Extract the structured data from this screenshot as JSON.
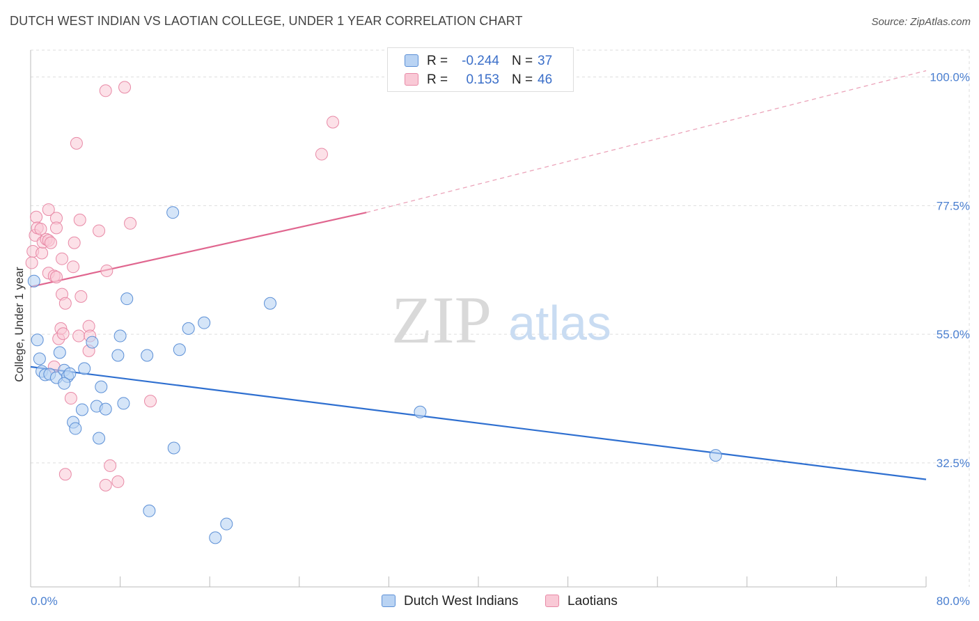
{
  "header": {
    "title": "DUTCH WEST INDIAN VS LAOTIAN COLLEGE, UNDER 1 YEAR CORRELATION CHART",
    "source": "Source: ZipAtlas.com"
  },
  "legend": {
    "r_label": "R =",
    "n_label": "N =",
    "blue": {
      "r": "-0.244",
      "n": "37"
    },
    "pink": {
      "r": "0.153",
      "n": "46"
    }
  },
  "bottom_legend": {
    "blue_label": "Dutch West Indians",
    "pink_label": "Laotians"
  },
  "watermark": {
    "zip": "ZIP",
    "atlas": "atlas"
  },
  "colors": {
    "blue_fill": "#b9d3f3",
    "blue_stroke": "#5b8fd6",
    "blue_line": "#2e6fd0",
    "pink_fill": "#f9c9d6",
    "pink_stroke": "#e889a6",
    "pink_line": "#e0668f",
    "tick_text": "#4a7fd0",
    "grid": "#dddddd"
  },
  "chart_data": {
    "type": "scatter",
    "title": "DUTCH WEST INDIAN VS LAOTIAN COLLEGE, UNDER 1 YEAR CORRELATION CHART",
    "xlabel": "",
    "ylabel": "College, Under 1 year",
    "xlim": [
      0,
      80
    ],
    "ylim": [
      10.8,
      104.7
    ],
    "x_tick_labels": [
      {
        "value": 0,
        "label": "0.0%"
      },
      {
        "value": 80,
        "label": "80.0%"
      }
    ],
    "y_ticks": [
      {
        "value": 32.5,
        "label": "32.5%"
      },
      {
        "value": 55.0,
        "label": "55.0%"
      },
      {
        "value": 77.5,
        "label": "77.5%"
      },
      {
        "value": 100.0,
        "label": "100.0%"
      }
    ],
    "x_minor_ticks": [
      0,
      8,
      16,
      24,
      32,
      40,
      48,
      56,
      64,
      72,
      80
    ],
    "series": [
      {
        "name": "Dutch West Indians",
        "r": -0.244,
        "n": 37,
        "points": [
          [
            0.3,
            64.3
          ],
          [
            0.6,
            54.0
          ],
          [
            0.8,
            50.7
          ],
          [
            1.0,
            48.5
          ],
          [
            1.3,
            47.9
          ],
          [
            1.7,
            48.0
          ],
          [
            2.3,
            47.4
          ],
          [
            2.6,
            51.8
          ],
          [
            3.0,
            48.7
          ],
          [
            3.3,
            47.6
          ],
          [
            3.5,
            48.1
          ],
          [
            3.0,
            46.4
          ],
          [
            4.8,
            49.0
          ],
          [
            5.5,
            53.6
          ],
          [
            6.3,
            45.8
          ],
          [
            5.9,
            42.4
          ],
          [
            4.6,
            41.8
          ],
          [
            3.8,
            39.6
          ],
          [
            4.0,
            38.5
          ],
          [
            6.7,
            41.9
          ],
          [
            6.1,
            36.8
          ],
          [
            7.8,
            51.3
          ],
          [
            8.0,
            54.7
          ],
          [
            8.3,
            42.9
          ],
          [
            8.6,
            61.2
          ],
          [
            10.4,
            51.3
          ],
          [
            13.3,
            52.3
          ],
          [
            12.8,
            35.1
          ],
          [
            14.1,
            56.0
          ],
          [
            15.5,
            57.0
          ],
          [
            21.4,
            60.4
          ],
          [
            12.7,
            76.3
          ],
          [
            10.6,
            24.1
          ],
          [
            17.5,
            21.8
          ],
          [
            16.5,
            19.4
          ],
          [
            34.8,
            41.4
          ],
          [
            61.2,
            33.8
          ]
        ],
        "trend": {
          "x": [
            0,
            80
          ],
          "y": [
            49.3,
            29.6
          ],
          "style": "solid"
        }
      },
      {
        "name": "Laotians",
        "r": 0.153,
        "n": 46,
        "points": [
          [
            0.2,
            69.5
          ],
          [
            0.4,
            72.3
          ],
          [
            0.5,
            75.5
          ],
          [
            0.6,
            73.6
          ],
          [
            0.9,
            73.4
          ],
          [
            1.0,
            69.2
          ],
          [
            1.1,
            71.1
          ],
          [
            1.4,
            71.6
          ],
          [
            1.6,
            71.4
          ],
          [
            1.8,
            71.0
          ],
          [
            1.6,
            65.7
          ],
          [
            1.6,
            76.8
          ],
          [
            2.1,
            65.2
          ],
          [
            2.3,
            65.0
          ],
          [
            2.3,
            75.3
          ],
          [
            2.3,
            73.6
          ],
          [
            2.8,
            68.2
          ],
          [
            2.8,
            62.0
          ],
          [
            3.1,
            60.4
          ],
          [
            2.5,
            54.2
          ],
          [
            2.7,
            56.0
          ],
          [
            2.9,
            55.1
          ],
          [
            3.8,
            66.8
          ],
          [
            3.9,
            71.0
          ],
          [
            4.4,
            75.0
          ],
          [
            4.5,
            61.6
          ],
          [
            4.3,
            54.7
          ],
          [
            5.2,
            56.4
          ],
          [
            5.3,
            54.7
          ],
          [
            5.2,
            52.1
          ],
          [
            6.1,
            73.1
          ],
          [
            6.8,
            66.1
          ],
          [
            8.9,
            74.4
          ],
          [
            3.6,
            43.8
          ],
          [
            2.1,
            49.3
          ],
          [
            7.1,
            32.0
          ],
          [
            7.8,
            29.2
          ],
          [
            6.7,
            28.6
          ],
          [
            3.1,
            30.5
          ],
          [
            10.7,
            43.3
          ],
          [
            4.1,
            88.4
          ],
          [
            6.7,
            97.6
          ],
          [
            8.4,
            98.2
          ],
          [
            26.0,
            86.5
          ],
          [
            27.0,
            92.1
          ],
          [
            0.1,
            67.5
          ]
        ],
        "trend": {
          "x": [
            0,
            30
          ],
          "y": [
            63.3,
            76.3
          ],
          "style": "solid"
        },
        "trend_extension": {
          "x": [
            30,
            80
          ],
          "y": [
            76.3,
            101.1
          ],
          "style": "dashed"
        }
      }
    ]
  }
}
